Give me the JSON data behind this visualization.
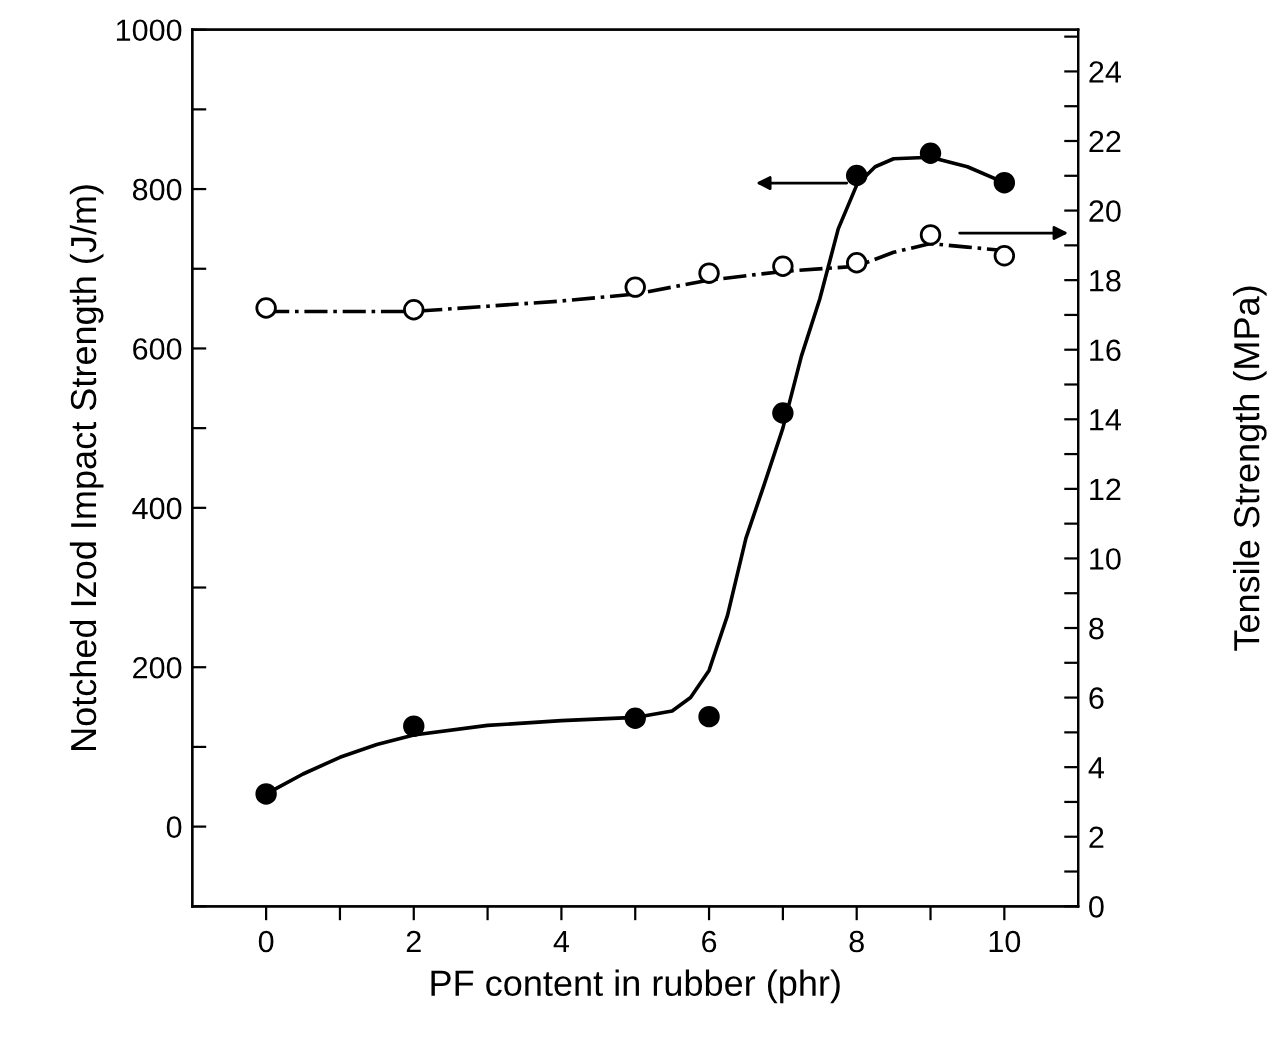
{
  "chart_data": {
    "type": "scatter",
    "xlabel": "PF content in rubber (phr)",
    "ylabel": "Notched Izod Impact Strength (J/m)",
    "y2label": "Tensile Strength (MPa)",
    "xlim": [
      -1,
      11
    ],
    "xticks": [
      0,
      {
        "value": 1,
        "label": null
      },
      2,
      {
        "value": 3,
        "label": null
      },
      4,
      {
        "value": 5,
        "label": null
      },
      6,
      {
        "value": 7,
        "label": null
      },
      8,
      {
        "value": 9,
        "label": null
      },
      10
    ],
    "ylim": [
      -100,
      1000
    ],
    "yticks": [
      {
        "value": -100,
        "label": null
      },
      0,
      {
        "value": 100,
        "label": null
      },
      200,
      {
        "value": 300,
        "label": null
      },
      400,
      {
        "value": 500,
        "label": null
      },
      600,
      {
        "value": 700,
        "label": null
      },
      800,
      {
        "value": 900,
        "label": null
      },
      1000
    ],
    "y2lim": [
      0,
      25.2
    ],
    "y2ticks": [
      0,
      {
        "value": 1,
        "label": null
      },
      2,
      {
        "value": 3,
        "label": null
      },
      4,
      {
        "value": 5,
        "label": null
      },
      6,
      {
        "value": 7,
        "label": null
      },
      8,
      {
        "value": 9,
        "label": null
      },
      10,
      {
        "value": 11,
        "label": null
      },
      12,
      {
        "value": 13,
        "label": null
      },
      14,
      {
        "value": 15,
        "label": null
      },
      16,
      {
        "value": 17,
        "label": null
      },
      18,
      {
        "value": 19,
        "label": null
      },
      20,
      {
        "value": 21,
        "label": null
      },
      22,
      {
        "value": 23,
        "label": null
      },
      24,
      {
        "value": 25,
        "label": null
      }
    ],
    "grid": false,
    "legend": false,
    "series": [
      {
        "color": "#000000",
        "marker": "circle",
        "x": [
          0,
          2,
          5,
          6,
          7,
          8,
          9,
          10
        ],
        "values": [
          41,
          126,
          136,
          138,
          519,
          817,
          845,
          808
        ]
      },
      {
        "type": "line",
        "color": "#000000",
        "line_style": "solid",
        "marker": "none",
        "x": [
          0,
          0.5,
          1,
          1.5,
          2,
          3,
          4,
          5,
          5.5,
          5.75,
          6,
          6.25,
          6.5,
          6.75,
          7,
          7.25,
          7.5,
          7.75,
          8,
          8.25,
          8.5,
          9,
          9.5,
          10
        ],
        "values": [
          41,
          66,
          87,
          103,
          115,
          127,
          133,
          137,
          145,
          162,
          196,
          265,
          362,
          430,
          500,
          590,
          662,
          750,
          805,
          828,
          838,
          840,
          828,
          808
        ]
      },
      {
        "axis": "y2",
        "color": "#ffffff",
        "marker": "circle",
        "x": [
          0,
          2,
          5,
          6,
          7,
          8,
          9,
          10
        ],
        "values": [
          17.2,
          17.15,
          17.8,
          18.2,
          18.4,
          18.5,
          19.3,
          18.7
        ]
      },
      {
        "type": "line",
        "axis": "y2",
        "color": "#000000",
        "line_style": "dashdot",
        "marker": "none",
        "x": [
          0,
          2,
          3,
          4,
          5,
          6,
          7,
          8,
          8.5,
          9,
          9.5,
          10
        ],
        "values": [
          17.1,
          17.1,
          17.25,
          17.4,
          17.6,
          18.0,
          18.25,
          18.4,
          18.8,
          19.05,
          18.95,
          18.85
        ]
      }
    ]
  }
}
